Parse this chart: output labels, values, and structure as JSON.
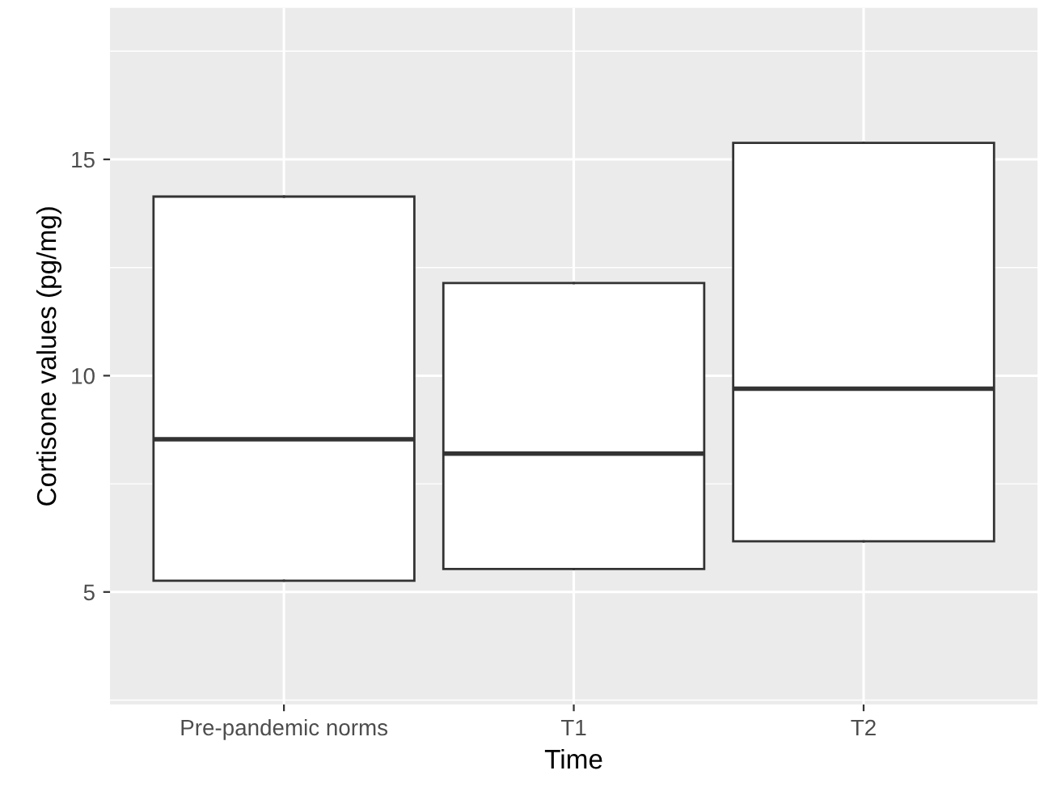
{
  "chart_data": {
    "type": "box",
    "xlabel": "Time",
    "ylabel": "Cortisone values (pg/mg)",
    "categories": [
      "Pre-pandemic norms",
      "T1",
      "T2"
    ],
    "boxes": [
      {
        "low": 5.26,
        "q1": 5.26,
        "median": 8.53,
        "q3": 14.14,
        "high": 14.14
      },
      {
        "low": 5.53,
        "q1": 5.53,
        "median": 8.2,
        "q3": 12.14,
        "high": 12.14
      },
      {
        "low": 6.17,
        "q1": 6.17,
        "median": 9.7,
        "q3": 15.38,
        "high": 15.38
      }
    ],
    "color": "#ffffff",
    "ylim": [
      2.4,
      18.5
    ],
    "yticks": [
      5,
      10,
      15
    ],
    "grid": true
  }
}
